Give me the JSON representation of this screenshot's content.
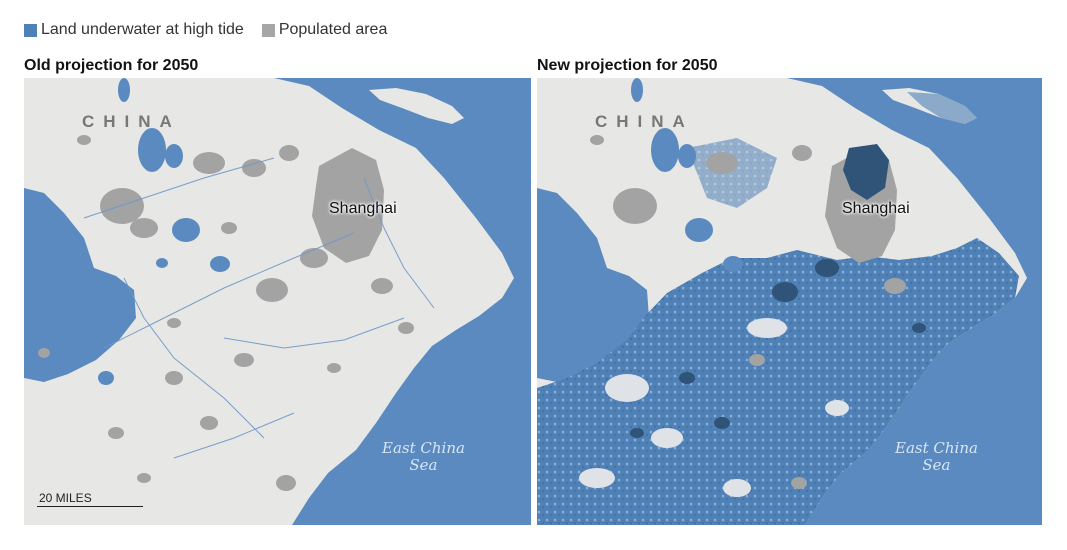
{
  "legend": {
    "items": [
      {
        "label": "Land underwater at high tide",
        "color": "#4f80b6"
      },
      {
        "label": "Populated area",
        "color": "#a6a6a6"
      }
    ]
  },
  "panels": [
    {
      "title": "Old projection for 2050"
    },
    {
      "title": "New projection for 2050"
    }
  ],
  "map_labels": {
    "country": "CHINA",
    "city": "Shanghai",
    "sea": "East China Sea",
    "sea_line1": "East China",
    "sea_line2": "Sea"
  },
  "scale": {
    "label": "20 MILES"
  },
  "colors": {
    "sea": "#5b8ac0",
    "land": "#e7e7e5",
    "populated": "#a3a3a3",
    "flooded": "#4f80b6",
    "flooded_populated": "#2f5477"
  }
}
